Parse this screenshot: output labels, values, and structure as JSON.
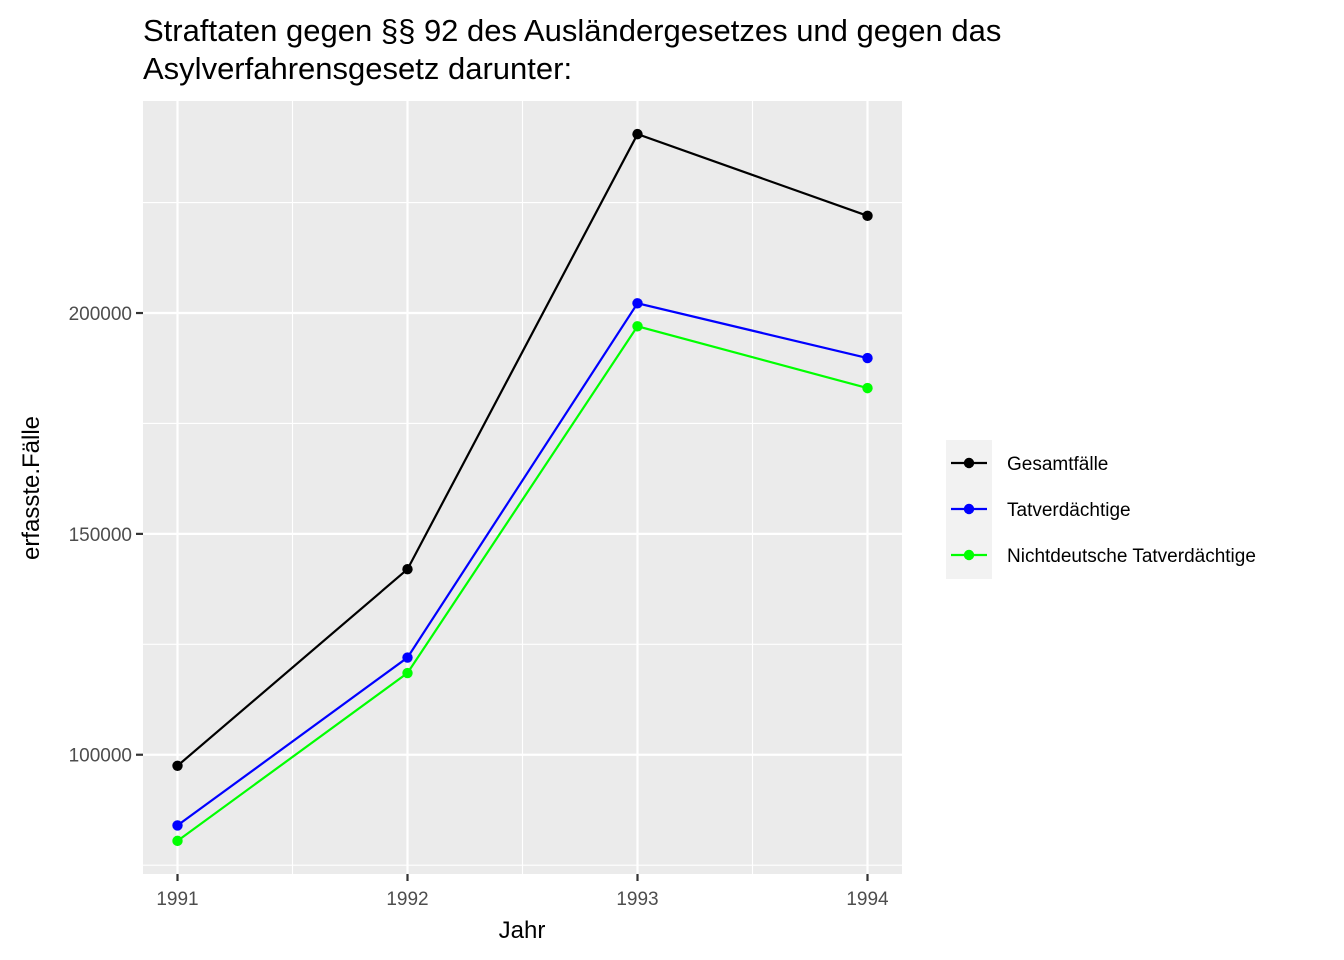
{
  "chart_data": {
    "type": "line",
    "title": "Straftaten gegen §§ 92 des Ausländergesetzes und gegen das",
    "subtitle": "Asylverfahrensgesetz darunter:",
    "xlabel": "Jahr",
    "ylabel": "erfasste.Fälle",
    "x": [
      1991,
      1992,
      1993,
      1994
    ],
    "x_tick_labels": [
      "1991",
      "1992",
      "1993",
      "1994"
    ],
    "y_ticks": [
      100000,
      150000,
      200000
    ],
    "y_tick_labels": [
      "100000",
      "150000",
      "200000"
    ],
    "ylim": [
      73000,
      248000
    ],
    "xlim": [
      1990.85,
      1994.15
    ],
    "grid": true,
    "legend_position": "right",
    "background": "#ebebeb",
    "series": [
      {
        "name": "Gesamtfälle",
        "color": "#000000",
        "values": [
          97500,
          142000,
          240500,
          222000
        ]
      },
      {
        "name": "Tatverdächtige",
        "color": "#0000ff",
        "values": [
          84000,
          122000,
          202200,
          189800
        ]
      },
      {
        "name": "Nichtdeutsche Tatverdächtige",
        "color": "#00ff00",
        "values": [
          80500,
          118500,
          197000,
          183000
        ]
      }
    ]
  }
}
